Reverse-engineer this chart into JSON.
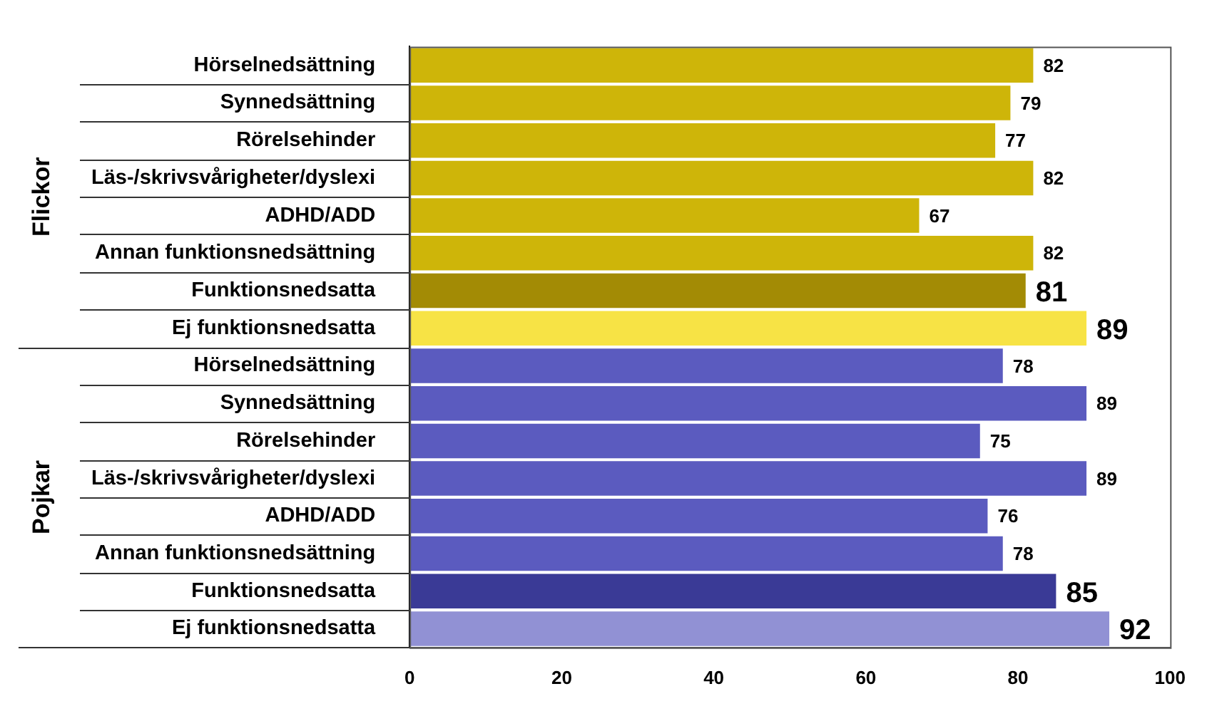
{
  "chart_data": {
    "type": "bar",
    "orientation": "horizontal",
    "categories": [
      "Hörselnedsättning",
      "Synnedsättning",
      "Rörelsehinder",
      "Läs-/skrivsvårigheter/dyslexi",
      "ADHD/ADD",
      "Annan funktionsnedsättning",
      "Funktionsnedsatta",
      "Ej funktionsnedsatta",
      "Hörselnedsättning",
      "Synnedsättning",
      "Rörelsehinder",
      "Läs-/skrivsvårigheter/dyslexi",
      "ADHD/ADD",
      "Annan funktionsnedsättning",
      "Funktionsnedsatta",
      "Ej funktionsnedsatta"
    ],
    "values": [
      82,
      79,
      77,
      82,
      67,
      82,
      81,
      89,
      78,
      89,
      75,
      89,
      76,
      78,
      85,
      92
    ],
    "colors": [
      "#ceb509",
      "#ceb509",
      "#ceb509",
      "#ceb509",
      "#ceb509",
      "#ceb509",
      "#a38b05",
      "#f7e345",
      "#5b5bbf",
      "#5b5bbf",
      "#5b5bbf",
      "#5b5bbf",
      "#5b5bbf",
      "#5b5bbf",
      "#3a3a96",
      "#9191d4"
    ],
    "xlim": [
      0,
      100
    ],
    "xticks": [
      0,
      20,
      40,
      60,
      80,
      100
    ],
    "data_labels": true,
    "grid": false,
    "legend": false,
    "annotations": [
      "Flickor",
      "Pojkar"
    ]
  }
}
